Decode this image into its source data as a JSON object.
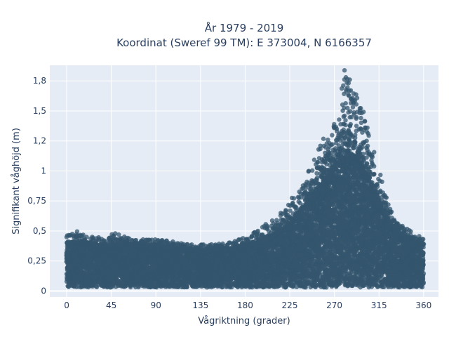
{
  "chart_data": {
    "type": "scatter",
    "title_line1": "År 1979 - 2019",
    "title_line2": "Koordinat (Sweref 99 TM): E 373004, N 6166357",
    "xlabel": "Vågriktning (grader)",
    "ylabel": "Signifikant våghöjd (m)",
    "xlim": [
      -17,
      375
    ],
    "ylim": [
      -0.05,
      1.88
    ],
    "xticks": [
      0,
      45,
      90,
      135,
      180,
      225,
      270,
      315,
      360
    ],
    "xtick_labels": [
      "0",
      "45",
      "90",
      "135",
      "180",
      "225",
      "270",
      "315",
      "360"
    ],
    "yticks": [
      0,
      0.25,
      0.5,
      0.75,
      1,
      1.25,
      1.5,
      1.75
    ],
    "ytick_labels": [
      "0",
      "0,25",
      "0,5",
      "0,75",
      "1",
      "1,2",
      "1,5",
      "1,8"
    ],
    "grid": true,
    "marker_color": "#34566e",
    "background_color": "#e5ecf6",
    "direction_bins": [
      0,
      10,
      20,
      30,
      40,
      50,
      60,
      70,
      80,
      90,
      100,
      110,
      120,
      130,
      140,
      150,
      160,
      170,
      180,
      190,
      200,
      210,
      220,
      230,
      240,
      250,
      260,
      270,
      275,
      280,
      285,
      290,
      295,
      300,
      310,
      320,
      330,
      340,
      350,
      360
    ],
    "dense_upper_height": [
      0.38,
      0.4,
      0.4,
      0.38,
      0.37,
      0.38,
      0.39,
      0.38,
      0.37,
      0.37,
      0.36,
      0.35,
      0.34,
      0.34,
      0.33,
      0.34,
      0.34,
      0.35,
      0.37,
      0.39,
      0.42,
      0.47,
      0.52,
      0.6,
      0.7,
      0.8,
      0.92,
      1.02,
      1.06,
      1.1,
      1.12,
      1.12,
      1.1,
      1.0,
      0.82,
      0.65,
      0.52,
      0.45,
      0.4,
      0.38
    ],
    "max_height": [
      0.46,
      0.5,
      0.46,
      0.45,
      0.45,
      0.49,
      0.45,
      0.44,
      0.43,
      0.43,
      0.42,
      0.41,
      0.4,
      0.39,
      0.39,
      0.39,
      0.4,
      0.42,
      0.45,
      0.5,
      0.56,
      0.62,
      0.7,
      0.8,
      0.95,
      1.1,
      1.3,
      1.4,
      1.5,
      1.85,
      1.8,
      1.7,
      1.55,
      1.48,
      1.15,
      0.85,
      0.6,
      0.55,
      0.48,
      0.44
    ],
    "min_height": 0.03
  }
}
